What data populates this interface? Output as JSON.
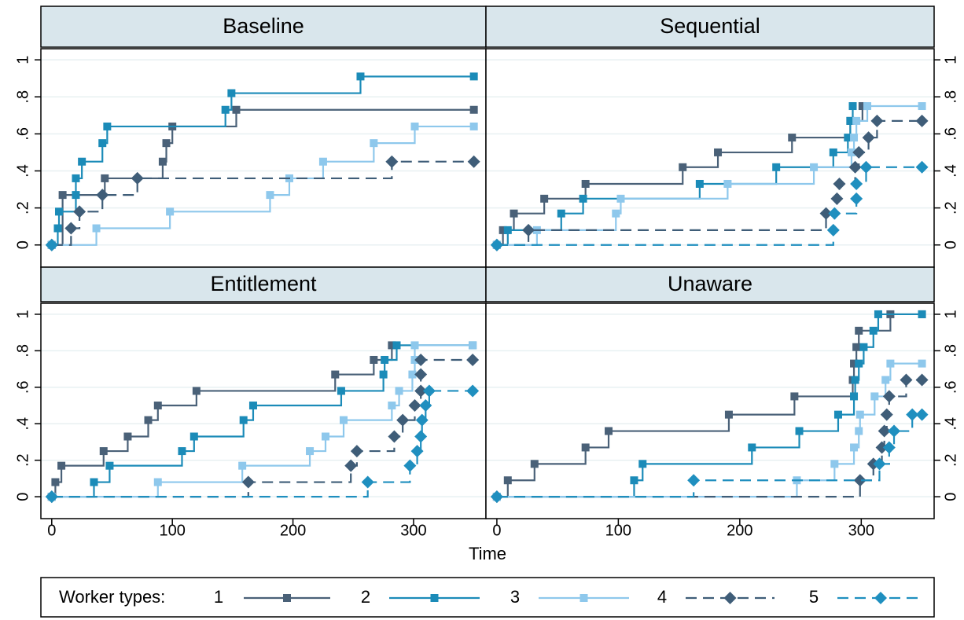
{
  "chart_data": {
    "type": "line",
    "step": "post",
    "xlabel": "Time",
    "legend_title": "Worker types:",
    "xlim": [
      -9,
      360
    ],
    "xticks": [
      0,
      100,
      200,
      300
    ],
    "ylim": [
      -0.12,
      1.06
    ],
    "yticks": [
      {
        "value": 0,
        "label": "0"
      },
      {
        "value": 0.2,
        "label": ".2"
      },
      {
        "value": 0.4,
        "label": ".4"
      },
      {
        "value": 0.6,
        "label": ".6"
      },
      {
        "value": 0.8,
        "label": ".8"
      },
      {
        "value": 1,
        "label": "1"
      }
    ],
    "grid": true,
    "series": [
      {
        "name": "1",
        "color": "#4a6178",
        "marker": "square",
        "dash": false
      },
      {
        "name": "2",
        "color": "#1b8bb8",
        "marker": "square",
        "dash": false
      },
      {
        "name": "3",
        "color": "#8ec8ec",
        "marker": "square",
        "dash": false
      },
      {
        "name": "4",
        "color": "#3f5d78",
        "marker": "diamond",
        "dash": true
      },
      {
        "name": "5",
        "color": "#1f8fbf",
        "marker": "diamond",
        "dash": true
      }
    ],
    "panels": [
      {
        "title": "Baseline",
        "series": [
          {
            "x": [
              0,
              9,
              44,
              92,
              95,
              100,
              153,
              350
            ],
            "values": [
              0,
              0.27,
              0.36,
              0.45,
              0.55,
              0.64,
              0.73,
              0.73
            ]
          },
          {
            "x": [
              0,
              5,
              6,
              20,
              20,
              25,
              42,
              46,
              144,
              149,
              256,
              350
            ],
            "values": [
              0,
              0.09,
              0.18,
              0.27,
              0.36,
              0.45,
              0.55,
              0.64,
              0.73,
              0.82,
              0.91,
              0.91
            ]
          },
          {
            "x": [
              0,
              37,
              98,
              181,
              197,
              225,
              267,
              301,
              350
            ],
            "values": [
              0,
              0.09,
              0.18,
              0.27,
              0.36,
              0.45,
              0.55,
              0.64,
              0.64
            ]
          },
          {
            "x": [
              0,
              16,
              23,
              42,
              71,
              282,
              350
            ],
            "values": [
              0,
              0.09,
              0.18,
              0.27,
              0.36,
              0.45,
              0.45
            ]
          },
          {
            "x": [
              0
            ],
            "values": [
              0
            ]
          }
        ]
      },
      {
        "title": "Sequential",
        "series": [
          {
            "x": [
              0,
              5,
              14,
              39,
              73,
              153,
              182,
              243,
              291,
              301
            ],
            "values": [
              0,
              0.08,
              0.17,
              0.25,
              0.33,
              0.42,
              0.5,
              0.58,
              0.67,
              0.75
            ]
          },
          {
            "x": [
              0,
              9,
              53,
              71,
              167,
              230,
              277,
              289,
              291,
              293
            ],
            "values": [
              0,
              0.08,
              0.17,
              0.25,
              0.33,
              0.42,
              0.5,
              0.58,
              0.67,
              0.75
            ]
          },
          {
            "x": [
              0,
              33,
              98,
              102,
              190,
              261,
              292,
              294,
              296,
              305,
              350
            ],
            "values": [
              0,
              0.08,
              0.17,
              0.25,
              0.33,
              0.42,
              0.5,
              0.58,
              0.67,
              0.75,
              0.75
            ]
          },
          {
            "x": [
              0,
              26,
              271,
              280,
              282,
              295,
              298,
              306,
              313,
              350
            ],
            "values": [
              0,
              0.08,
              0.17,
              0.25,
              0.33,
              0.42,
              0.5,
              0.58,
              0.67,
              0.67
            ]
          },
          {
            "x": [
              0,
              277,
              278,
              296,
              296,
              304,
              350
            ],
            "values": [
              0,
              0.08,
              0.17,
              0.25,
              0.33,
              0.42,
              0.42
            ]
          }
        ]
      },
      {
        "title": "Entitlement",
        "series": [
          {
            "x": [
              0,
              3,
              8,
              43,
              63,
              80,
              88,
              120,
              235,
              267,
              282
            ],
            "values": [
              0,
              0.08,
              0.17,
              0.25,
              0.33,
              0.42,
              0.5,
              0.58,
              0.67,
              0.75,
              0.83
            ]
          },
          {
            "x": [
              0,
              35,
              48,
              108,
              118,
              159,
              167,
              240,
              275,
              276,
              286,
              349
            ],
            "values": [
              0,
              0.08,
              0.17,
              0.25,
              0.33,
              0.42,
              0.5,
              0.58,
              0.67,
              0.75,
              0.83,
              0.83
            ]
          },
          {
            "x": [
              0,
              88,
              158,
              214,
              227,
              242,
              282,
              288,
              299,
              301,
              301,
              349
            ],
            "values": [
              0,
              0.08,
              0.17,
              0.25,
              0.33,
              0.42,
              0.5,
              0.58,
              0.67,
              0.75,
              0.83,
              0.83
            ]
          },
          {
            "x": [
              0,
              163,
              248,
              253,
              284,
              291,
              301,
              306,
              306,
              306,
              349
            ],
            "values": [
              0,
              0.08,
              0.17,
              0.25,
              0.33,
              0.42,
              0.5,
              0.58,
              0.67,
              0.75,
              0.75
            ]
          },
          {
            "x": [
              0,
              262,
              297,
              303,
              306,
              307,
              310,
              313,
              349
            ],
            "values": [
              0,
              0.08,
              0.17,
              0.25,
              0.33,
              0.42,
              0.5,
              0.58,
              0.58
            ]
          }
        ]
      },
      {
        "title": "Unaware",
        "series": [
          {
            "x": [
              0,
              9,
              31,
              73,
              92,
              191,
              245,
              293,
              294,
              296,
              298,
              324,
              350
            ],
            "values": [
              0,
              0.09,
              0.18,
              0.27,
              0.36,
              0.45,
              0.55,
              0.64,
              0.73,
              0.82,
              0.91,
              1,
              1
            ]
          },
          {
            "x": [
              0,
              113,
              120,
              210,
              249,
              281,
              294,
              295,
              298,
              302,
              310,
              314,
              350
            ],
            "values": [
              0,
              0.09,
              0.18,
              0.27,
              0.36,
              0.45,
              0.55,
              0.64,
              0.73,
              0.82,
              0.91,
              1,
              1
            ]
          },
          {
            "x": [
              0,
              247,
              278,
              294,
              298,
              299,
              311,
              320,
              324,
              350
            ],
            "values": [
              0,
              0.09,
              0.18,
              0.27,
              0.36,
              0.45,
              0.55,
              0.64,
              0.73,
              0.73
            ]
          },
          {
            "x": [
              0,
              299,
              310,
              317,
              319,
              321,
              323,
              337,
              350
            ],
            "values": [
              0,
              0.09,
              0.18,
              0.27,
              0.36,
              0.45,
              0.55,
              0.64,
              0.64
            ]
          },
          {
            "x": [
              0,
              162,
              315,
              323,
              327,
              342,
              350
            ],
            "values": [
              0,
              0.09,
              0.18,
              0.27,
              0.36,
              0.45,
              0.45
            ]
          }
        ]
      }
    ]
  }
}
